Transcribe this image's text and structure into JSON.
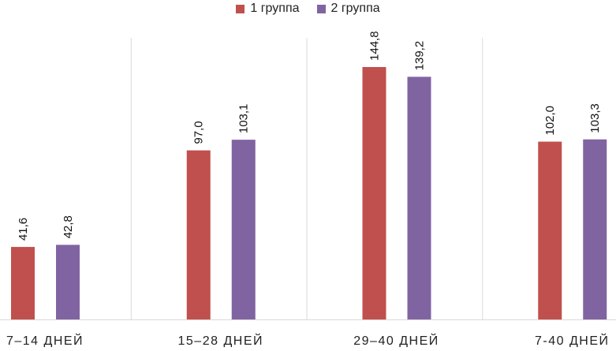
{
  "chart_data": {
    "type": "bar",
    "categories": [
      "7–14 ДНЕЙ",
      "15–28 ДНЕЙ",
      "29–40 ДНЕЙ",
      "7-40 ДНЕЙ"
    ],
    "series": [
      {
        "name": "1 группа",
        "values": [
          41.6,
          97.0,
          144.8,
          102.0
        ],
        "labels": [
          "41,6",
          "97,0",
          "144,8",
          "102,0"
        ],
        "color": "#c0504d"
      },
      {
        "name": "2 группа",
        "values": [
          42.8,
          103.1,
          139.2,
          103.3
        ],
        "labels": [
          "42,8",
          "103,1",
          "139,2",
          "103,3"
        ],
        "color": "#8064a2"
      }
    ],
    "ylim": [
      0,
      180
    ],
    "grid": false,
    "legend_position": "top",
    "data_label_orientation": "vertical"
  }
}
